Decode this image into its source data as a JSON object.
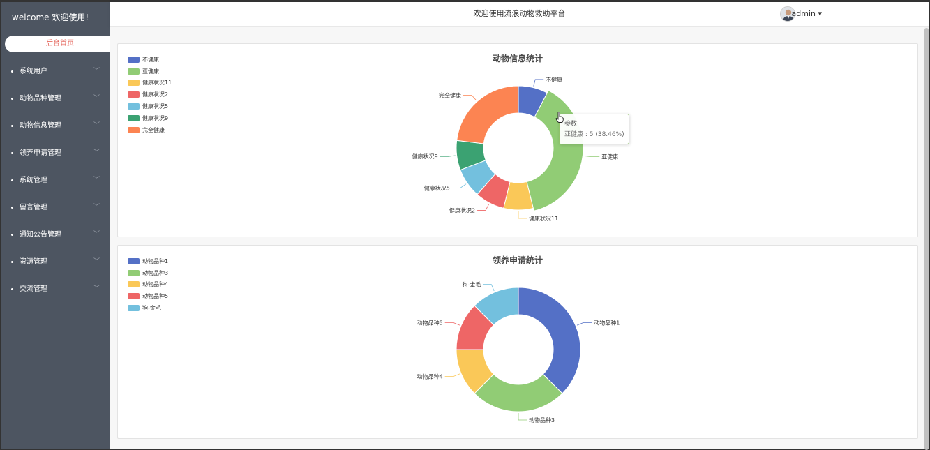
{
  "sidebar": {
    "welcome": "welcome 欢迎使用!",
    "home": "后台首页",
    "items": [
      {
        "label": "系统用户"
      },
      {
        "label": "动物品种管理"
      },
      {
        "label": "动物信息管理"
      },
      {
        "label": "领养申请管理"
      },
      {
        "label": "系统管理"
      },
      {
        "label": "留言管理"
      },
      {
        "label": "通知公告管理"
      },
      {
        "label": "资源管理"
      },
      {
        "label": "交流管理"
      }
    ]
  },
  "header": {
    "title": "欢迎使用流浪动物救助平台",
    "user": "admin ▾"
  },
  "tooltip": {
    "title": "参数",
    "text": "亚健康 : 5 (38.46%)"
  },
  "colors": [
    "#5470c6",
    "#91cc75",
    "#fac858",
    "#ee6666",
    "#73c0de",
    "#3ba272",
    "#fc8452"
  ],
  "chart_data": [
    {
      "type": "pie",
      "title": "动物信息统计",
      "legend_position": "top-left",
      "categories": [
        "不健康",
        "亚健康",
        "健康状况11",
        "健康状况2",
        "健康状况5",
        "健康状况9",
        "完全健康"
      ],
      "values": [
        1,
        5,
        1,
        1,
        1,
        1,
        3
      ],
      "donut": true
    },
    {
      "type": "pie",
      "title": "领养申请统计",
      "legend_position": "top-left",
      "categories": [
        "动物品种1",
        "动物品种3",
        "动物品种4",
        "动物品种5",
        "狗-金毛"
      ],
      "values": [
        3,
        2,
        1,
        1,
        1
      ],
      "donut": true
    }
  ]
}
